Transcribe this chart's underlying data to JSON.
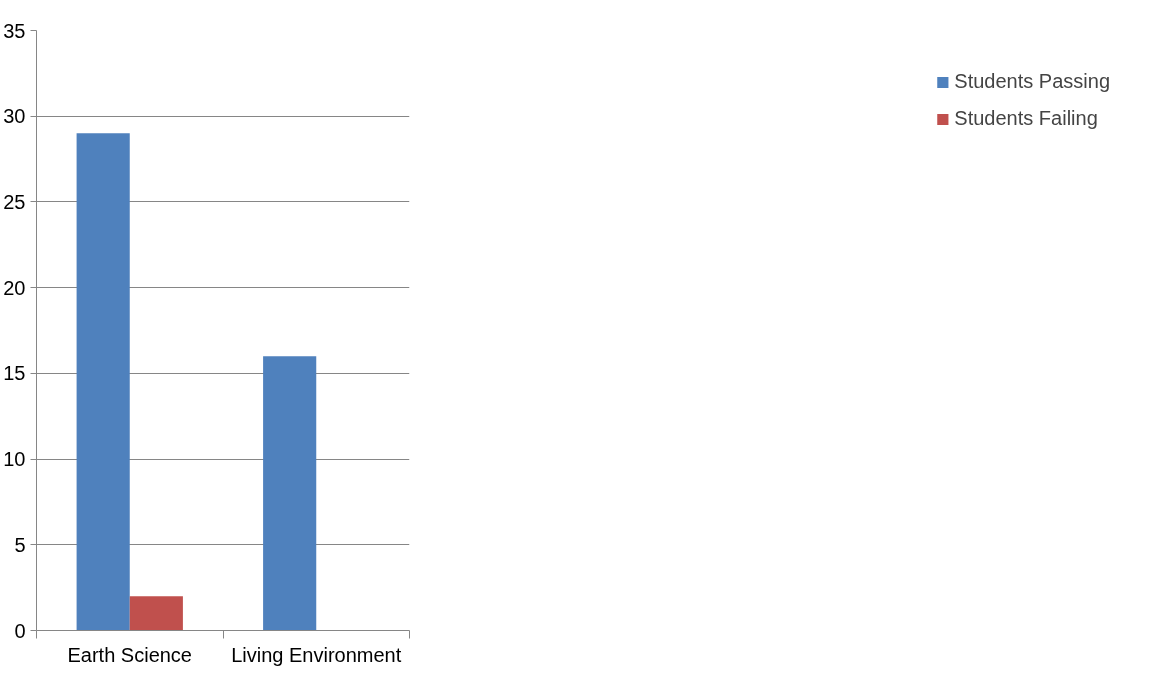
{
  "chart_data": {
    "type": "bar",
    "categories": [
      "Earth Science",
      "Living Environment"
    ],
    "series": [
      {
        "name": "Students Passing",
        "color": "#4f81bd",
        "values": [
          29,
          16
        ]
      },
      {
        "name": "Students Failing",
        "color": "#c0504d",
        "values": [
          2,
          0
        ]
      }
    ],
    "ylim": [
      0,
      35
    ],
    "yticks": [
      0,
      5,
      10,
      15,
      20,
      25,
      30,
      35
    ],
    "grid": "y",
    "legend": "right"
  }
}
